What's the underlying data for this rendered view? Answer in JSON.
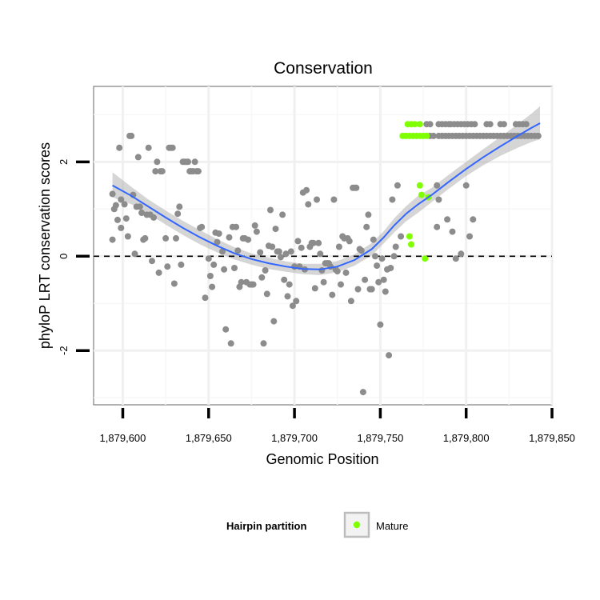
{
  "chart_data": {
    "type": "scatter",
    "title": "Conservation",
    "xlabel": "Genomic Position",
    "ylabel": "phyloP LRT conservation scores",
    "xlim": [
      1879583,
      1879850
    ],
    "ylim": [
      -3.15,
      3.6
    ],
    "x_ticks": [
      {
        "value": 1879600,
        "label": "1,879,600"
      },
      {
        "value": 1879650,
        "label": "1,879,650"
      },
      {
        "value": 1879700,
        "label": "1,879,700"
      },
      {
        "value": 1879750,
        "label": "1,879,750"
      },
      {
        "value": 1879800,
        "label": "1,879,800"
      },
      {
        "value": 1879850,
        "label": "1,879,850"
      }
    ],
    "y_ticks": [
      {
        "value": -2,
        "label": "-2"
      },
      {
        "value": 0,
        "label": "0"
      },
      {
        "value": 2,
        "label": "2"
      }
    ],
    "hline": 0,
    "grid": true,
    "legend": {
      "title": "Hairpin partition",
      "position": "bottom",
      "entries": [
        {
          "label": "Mature",
          "color": "#7fff00"
        }
      ]
    },
    "colors": {
      "other": "#8c8c8c",
      "mature": "#7fff00",
      "smooth": "#3366ff",
      "band": "#b3b3b3"
    },
    "series": [
      {
        "name": "Other",
        "points": [
          [
            1879594,
            1.32
          ],
          [
            1879594,
            0.35
          ],
          [
            1879595,
            1.0
          ],
          [
            1879596,
            1.08
          ],
          [
            1879597,
            0.77
          ],
          [
            1879598,
            2.3
          ],
          [
            1879599,
            1.2
          ],
          [
            1879599,
            0.6
          ],
          [
            1879601,
            1.1
          ],
          [
            1879602,
            0.8
          ],
          [
            1879603,
            0.42
          ],
          [
            1879604,
            2.55
          ],
          [
            1879605,
            2.55
          ],
          [
            1879606,
            1.3
          ],
          [
            1879607,
            0.05
          ],
          [
            1879608,
            1.05
          ],
          [
            1879609,
            2.1
          ],
          [
            1879610,
            1.05
          ],
          [
            1879611,
            0.92
          ],
          [
            1879612,
            0.35
          ],
          [
            1879613,
            0.38
          ],
          [
            1879614,
            0.88
          ],
          [
            1879615,
            2.3
          ],
          [
            1879616,
            0.88
          ],
          [
            1879617,
            -0.1
          ],
          [
            1879618,
            0.82
          ],
          [
            1879619,
            1.8
          ],
          [
            1879620,
            2.0
          ],
          [
            1879621,
            -0.35
          ],
          [
            1879622,
            1.8
          ],
          [
            1879623,
            1.8
          ],
          [
            1879625,
            0.38
          ],
          [
            1879626,
            -0.22
          ],
          [
            1879627,
            2.3
          ],
          [
            1879628,
            2.3
          ],
          [
            1879629,
            2.3
          ],
          [
            1879630,
            -0.58
          ],
          [
            1879631,
            0.38
          ],
          [
            1879632,
            0.9
          ],
          [
            1879633,
            1.05
          ],
          [
            1879634,
            -0.18
          ],
          [
            1879635,
            2.0
          ],
          [
            1879636,
            2.0
          ],
          [
            1879637,
            2.0
          ],
          [
            1879638,
            2.0
          ],
          [
            1879639,
            1.8
          ],
          [
            1879640,
            1.8
          ],
          [
            1879641,
            1.8
          ],
          [
            1879642,
            2.0
          ],
          [
            1879643,
            1.8
          ],
          [
            1879644,
            1.8
          ],
          [
            1879645,
            0.6
          ],
          [
            1879646,
            0.62
          ],
          [
            1879648,
            -0.88
          ],
          [
            1879650,
            -0.05
          ],
          [
            1879651,
            -0.42
          ],
          [
            1879652,
            -0.65
          ],
          [
            1879653,
            -0.18
          ],
          [
            1879654,
            0.5
          ],
          [
            1879655,
            0.3
          ],
          [
            1879656,
            0.48
          ],
          [
            1879658,
            0.1
          ],
          [
            1879659,
            -0.28
          ],
          [
            1879660,
            -1.55
          ],
          [
            1879662,
            0.4
          ],
          [
            1879663,
            -1.85
          ],
          [
            1879664,
            0.62
          ],
          [
            1879665,
            -0.25
          ],
          [
            1879666,
            0.62
          ],
          [
            1879667,
            0.12
          ],
          [
            1879668,
            -0.65
          ],
          [
            1879669,
            -0.55
          ],
          [
            1879670,
            0.38
          ],
          [
            1879671,
            0.38
          ],
          [
            1879672,
            -0.55
          ],
          [
            1879673,
            0.35
          ],
          [
            1879674,
            -0.6
          ],
          [
            1879675,
            -0.6
          ],
          [
            1879676,
            -0.6
          ],
          [
            1879677,
            0.65
          ],
          [
            1879678,
            0.52
          ],
          [
            1879680,
            0.08
          ],
          [
            1879681,
            -0.45
          ],
          [
            1879682,
            -1.85
          ],
          [
            1879683,
            -0.3
          ],
          [
            1879684,
            -0.8
          ],
          [
            1879685,
            0.22
          ],
          [
            1879686,
            0.98
          ],
          [
            1879687,
            0.2
          ],
          [
            1879688,
            -1.38
          ],
          [
            1879689,
            0.58
          ],
          [
            1879690,
            0.1
          ],
          [
            1879691,
            0.1
          ],
          [
            1879692,
            -0.02
          ],
          [
            1879693,
            0.88
          ],
          [
            1879694,
            -0.5
          ],
          [
            1879695,
            0.05
          ],
          [
            1879696,
            -0.85
          ],
          [
            1879697,
            -0.6
          ],
          [
            1879698,
            0.1
          ],
          [
            1879699,
            -1.05
          ],
          [
            1879700,
            -0.22
          ],
          [
            1879701,
            -0.95
          ],
          [
            1879702,
            0.32
          ],
          [
            1879703,
            -0.22
          ],
          [
            1879704,
            0.18
          ],
          [
            1879705,
            1.35
          ],
          [
            1879706,
            -0.28
          ],
          [
            1879707,
            1.4
          ],
          [
            1879708,
            1.1
          ],
          [
            1879709,
            0.2
          ],
          [
            1879710,
            0.28
          ],
          [
            1879711,
            0.28
          ],
          [
            1879712,
            -0.68
          ],
          [
            1879713,
            1.2
          ],
          [
            1879714,
            0.28
          ],
          [
            1879715,
            0.05
          ],
          [
            1879716,
            -0.3
          ],
          [
            1879717,
            -0.55
          ],
          [
            1879718,
            -0.15
          ],
          [
            1879719,
            -0.15
          ],
          [
            1879720,
            -0.15
          ],
          [
            1879721,
            -0.22
          ],
          [
            1879722,
            -0.82
          ],
          [
            1879723,
            1.2
          ],
          [
            1879724,
            -0.28
          ],
          [
            1879725,
            -0.32
          ],
          [
            1879726,
            0.2
          ],
          [
            1879727,
            -0.6
          ],
          [
            1879728,
            0.42
          ],
          [
            1879729,
            0.38
          ],
          [
            1879730,
            -0.35
          ],
          [
            1879731,
            0.38
          ],
          [
            1879732,
            0.32
          ],
          [
            1879733,
            -0.95
          ],
          [
            1879734,
            1.45
          ],
          [
            1879735,
            1.45
          ],
          [
            1879736,
            1.45
          ],
          [
            1879737,
            -0.7
          ],
          [
            1879738,
            0.15
          ],
          [
            1879739,
            0.12
          ],
          [
            1879740,
            -2.88
          ],
          [
            1879741,
            -0.5
          ],
          [
            1879742,
            0.62
          ],
          [
            1879743,
            0.88
          ],
          [
            1879744,
            -0.7
          ],
          [
            1879745,
            -0.7
          ],
          [
            1879746,
            0.35
          ],
          [
            1879747,
            0.0
          ],
          [
            1879748,
            -0.2
          ],
          [
            1879749,
            -0.55
          ],
          [
            1879750,
            -1.45
          ],
          [
            1879751,
            -0.05
          ],
          [
            1879752,
            -0.5
          ],
          [
            1879753,
            -0.75
          ],
          [
            1879754,
            -0.28
          ],
          [
            1879755,
            -2.1
          ],
          [
            1879756,
            -0.25
          ],
          [
            1879757,
            1.2
          ],
          [
            1879758,
            0.0
          ],
          [
            1879759,
            0.2
          ],
          [
            1879760,
            1.5
          ],
          [
            1879762,
            0.42
          ],
          [
            1879783,
            0.62
          ],
          [
            1879783,
            1.5
          ],
          [
            1879784,
            1.2
          ],
          [
            1879789,
            0.78
          ],
          [
            1879792,
            0.52
          ],
          [
            1879794,
            -0.05
          ],
          [
            1879797,
            0.05
          ],
          [
            1879800,
            1.5
          ],
          [
            1879802,
            0.42
          ],
          [
            1879804,
            0.78
          ],
          [
            1879777,
            2.8
          ],
          [
            1879779,
            2.8
          ],
          [
            1879784,
            2.8
          ],
          [
            1879786,
            2.8
          ],
          [
            1879788,
            2.8
          ],
          [
            1879790,
            2.8
          ],
          [
            1879791,
            2.8
          ],
          [
            1879793,
            2.8
          ],
          [
            1879795,
            2.8
          ],
          [
            1879797,
            2.8
          ],
          [
            1879799,
            2.8
          ],
          [
            1879801,
            2.8
          ],
          [
            1879803,
            2.8
          ],
          [
            1879805,
            2.8
          ],
          [
            1879812,
            2.8
          ],
          [
            1879814,
            2.8
          ],
          [
            1879820,
            2.8
          ],
          [
            1879822,
            2.8
          ],
          [
            1879829,
            2.8
          ],
          [
            1879831,
            2.8
          ],
          [
            1879833,
            2.8
          ],
          [
            1879835,
            2.8
          ],
          [
            1879779,
            2.55
          ],
          [
            1879781,
            2.55
          ],
          [
            1879784,
            2.55
          ],
          [
            1879786,
            2.55
          ],
          [
            1879788,
            2.55
          ],
          [
            1879790,
            2.55
          ],
          [
            1879792,
            2.55
          ],
          [
            1879794,
            2.55
          ],
          [
            1879796,
            2.55
          ],
          [
            1879798,
            2.55
          ],
          [
            1879800,
            2.55
          ],
          [
            1879802,
            2.55
          ],
          [
            1879804,
            2.55
          ],
          [
            1879806,
            2.55
          ],
          [
            1879808,
            2.55
          ],
          [
            1879810,
            2.55
          ],
          [
            1879812,
            2.55
          ],
          [
            1879814,
            2.55
          ],
          [
            1879816,
            2.55
          ],
          [
            1879818,
            2.55
          ],
          [
            1879820,
            2.55
          ],
          [
            1879822,
            2.55
          ],
          [
            1879824,
            2.55
          ],
          [
            1879826,
            2.55
          ],
          [
            1879828,
            2.55
          ],
          [
            1879830,
            2.55
          ],
          [
            1879832,
            2.55
          ],
          [
            1879834,
            2.55
          ],
          [
            1879836,
            2.55
          ],
          [
            1879838,
            2.55
          ],
          [
            1879840,
            2.55
          ],
          [
            1879842,
            2.55
          ]
        ]
      },
      {
        "name": "Mature",
        "points": [
          [
            1879766,
            2.8
          ],
          [
            1879768,
            2.8
          ],
          [
            1879770,
            2.8
          ],
          [
            1879773,
            2.8
          ],
          [
            1879763,
            2.55
          ],
          [
            1879765,
            2.55
          ],
          [
            1879767,
            2.55
          ],
          [
            1879769,
            2.55
          ],
          [
            1879771,
            2.55
          ],
          [
            1879773,
            2.55
          ],
          [
            1879775,
            2.55
          ],
          [
            1879777,
            2.55
          ],
          [
            1879767,
            0.42
          ],
          [
            1879768,
            0.25
          ],
          [
            1879773,
            1.5
          ],
          [
            1879774,
            1.3
          ],
          [
            1879778,
            1.25
          ],
          [
            1879776,
            -0.05
          ]
        ]
      }
    ],
    "smooth_line": {
      "x": [
        1879594,
        1879605,
        1879615,
        1879625,
        1879635,
        1879645,
        1879655,
        1879665,
        1879675,
        1879685,
        1879695,
        1879705,
        1879715,
        1879725,
        1879735,
        1879745,
        1879752,
        1879758,
        1879765,
        1879772,
        1879780,
        1879790,
        1879800,
        1879810,
        1879820,
        1879830,
        1879838,
        1879843
      ],
      "y": [
        1.5,
        1.28,
        1.05,
        0.82,
        0.6,
        0.4,
        0.22,
        0.06,
        -0.06,
        -0.15,
        -0.22,
        -0.27,
        -0.28,
        -0.22,
        -0.08,
        0.15,
        0.4,
        0.65,
        0.9,
        1.1,
        1.3,
        1.58,
        1.85,
        2.1,
        2.33,
        2.55,
        2.72,
        2.82
      ]
    },
    "confidence_band": {
      "lower": [
        1.25,
        1.1,
        0.9,
        0.67,
        0.45,
        0.25,
        0.08,
        -0.07,
        -0.18,
        -0.27,
        -0.33,
        -0.38,
        -0.4,
        -0.34,
        -0.2,
        0.02,
        0.27,
        0.5,
        0.74,
        0.92,
        1.15,
        1.43,
        1.7,
        1.93,
        2.13,
        2.3,
        2.42,
        2.48
      ],
      "upper": [
        1.78,
        1.47,
        1.2,
        0.97,
        0.75,
        0.55,
        0.36,
        0.19,
        0.06,
        -0.03,
        -0.11,
        -0.16,
        -0.16,
        -0.1,
        0.04,
        0.28,
        0.53,
        0.8,
        1.06,
        1.28,
        1.45,
        1.73,
        2.0,
        2.27,
        2.53,
        2.8,
        3.02,
        3.18
      ]
    }
  }
}
